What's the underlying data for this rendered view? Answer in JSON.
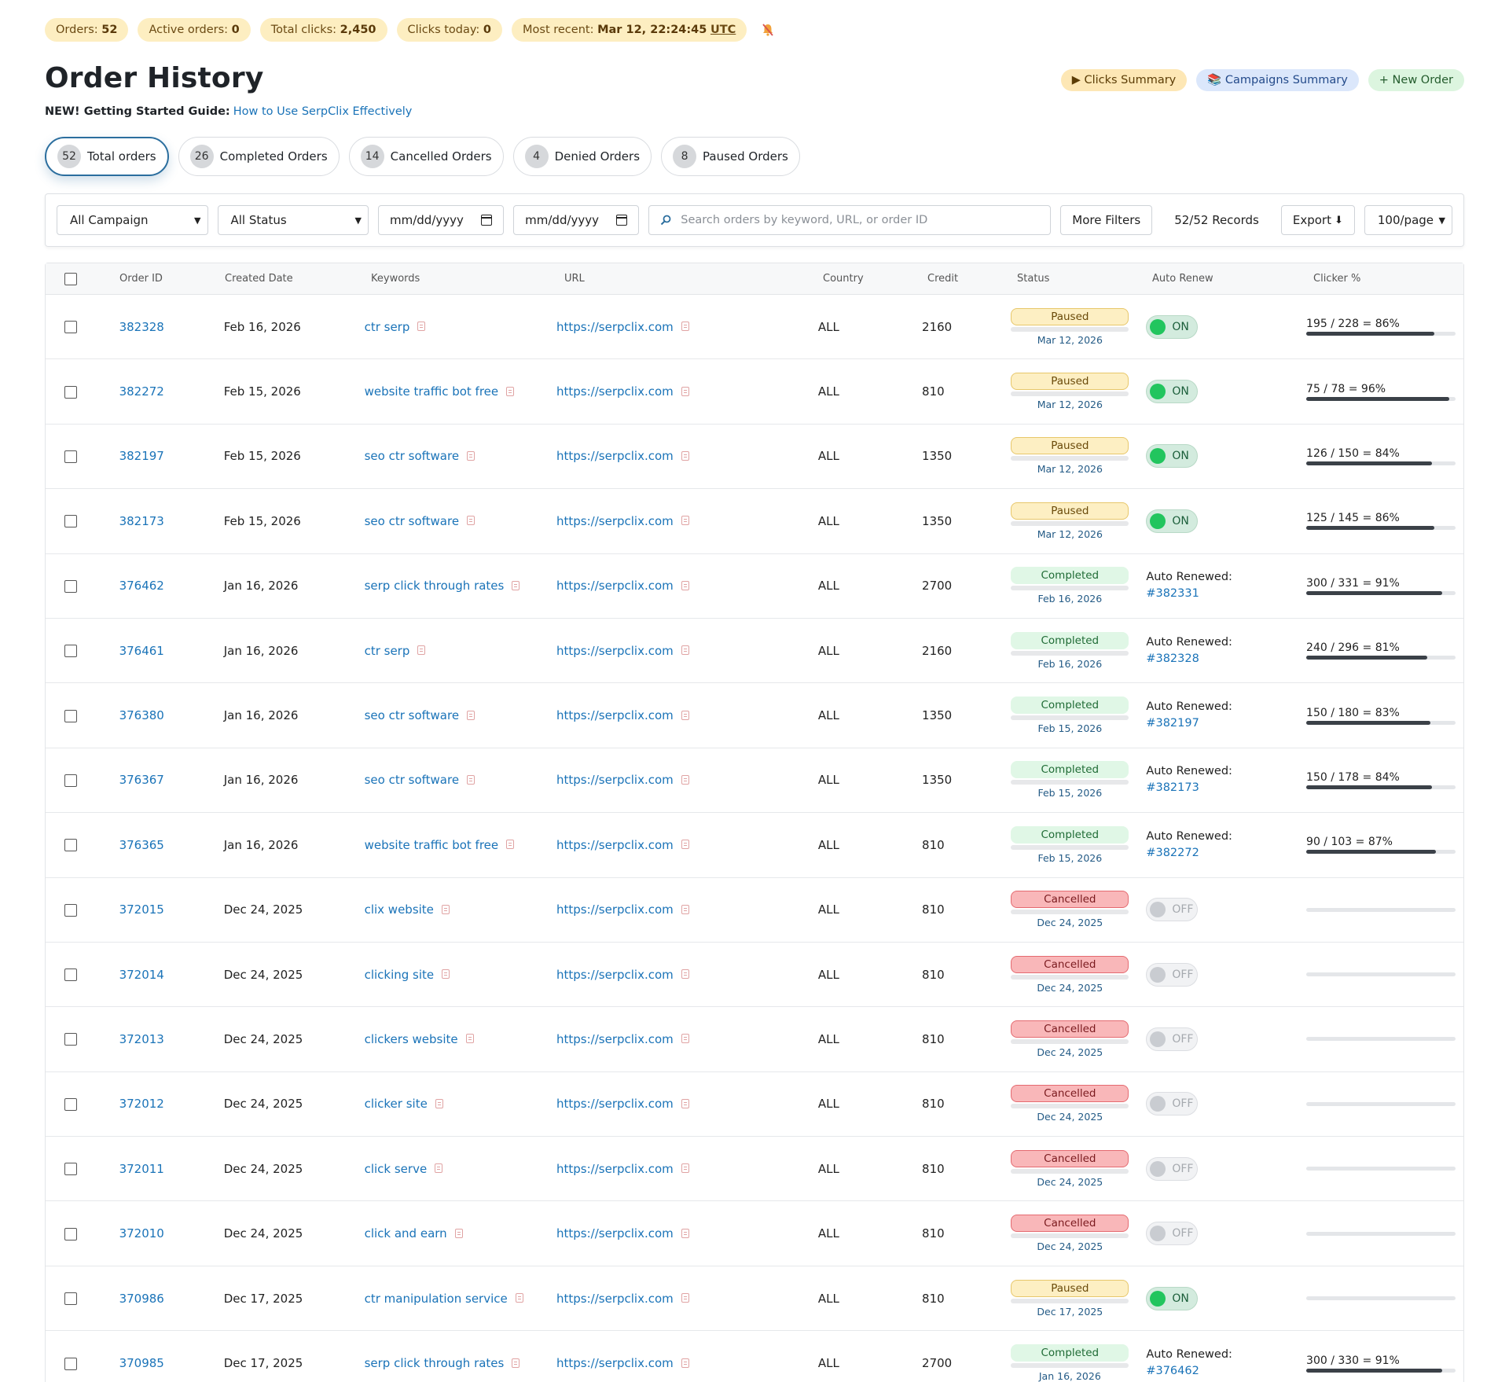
{
  "stats": {
    "orders_label": "Orders:",
    "orders_value": "52",
    "active_label": "Active orders:",
    "active_value": "0",
    "clicks_label": "Total clicks:",
    "clicks_value": "2,450",
    "today_label": "Clicks today:",
    "today_value": "0",
    "recent_label": "Most recent:",
    "recent_value": "Mar 12, 22:24:45",
    "recent_tz": "UTC",
    "notify_icon": "muted-bell-icon"
  },
  "header": {
    "title": "Order History",
    "clicks_summary": "▶ Clicks Summary",
    "campaigns_summary": "📚 Campaigns Summary",
    "new_order": "+ New Order"
  },
  "guide": {
    "label": "NEW! Getting Started Guide:",
    "link": "How to Use SerpClix Effectively"
  },
  "tabs": [
    {
      "count": "52",
      "label": "Total orders"
    },
    {
      "count": "26",
      "label": "Completed Orders"
    },
    {
      "count": "14",
      "label": "Cancelled Orders"
    },
    {
      "count": "4",
      "label": "Denied Orders"
    },
    {
      "count": "8",
      "label": "Paused Orders"
    }
  ],
  "filters": {
    "campaign": "All Campaign",
    "status": "All Status",
    "date_from": "mm/dd/yyyy",
    "date_to": "mm/dd/yyyy",
    "search_placeholder": "Search orders by keyword, URL, or order ID",
    "more_filters": "More Filters",
    "records": "52/52 Records",
    "export": "Export",
    "per_page": "100/page"
  },
  "table": {
    "columns": [
      "Order ID",
      "Created Date",
      "Keywords",
      "URL",
      "Country",
      "Credit",
      "Status",
      "Auto Renew",
      "Clicker %"
    ],
    "rows": [
      {
        "id": "382328",
        "date": "Feb 16, 2026",
        "kw": "ctr serp",
        "url": "https://serpclix.com",
        "country": "ALL",
        "credit": "2160",
        "status": "Paused",
        "status_date": "Mar 12, 2026",
        "renew": "ON",
        "renew_label": "",
        "renew_link": "",
        "clicker": "195 / 228 = 86%",
        "pct": 0.86
      },
      {
        "id": "382272",
        "date": "Feb 15, 2026",
        "kw": "website traffic bot free",
        "url": "https://serpclix.com",
        "country": "ALL",
        "credit": "810",
        "status": "Paused",
        "status_date": "Mar 12, 2026",
        "renew": "ON",
        "renew_label": "",
        "renew_link": "",
        "clicker": "75 / 78 = 96%",
        "pct": 0.96
      },
      {
        "id": "382197",
        "date": "Feb 15, 2026",
        "kw": "seo ctr software",
        "url": "https://serpclix.com",
        "country": "ALL",
        "credit": "1350",
        "status": "Paused",
        "status_date": "Mar 12, 2026",
        "renew": "ON",
        "renew_label": "",
        "renew_link": "",
        "clicker": "126 / 150 = 84%",
        "pct": 0.84
      },
      {
        "id": "382173",
        "date": "Feb 15, 2026",
        "kw": "seo ctr software",
        "url": "https://serpclix.com",
        "country": "ALL",
        "credit": "1350",
        "status": "Paused",
        "status_date": "Mar 12, 2026",
        "renew": "ON",
        "renew_label": "",
        "renew_link": "",
        "clicker": "125 / 145 = 86%",
        "pct": 0.86
      },
      {
        "id": "376462",
        "date": "Jan 16, 2026",
        "kw": "serp click through rates",
        "url": "https://serpclix.com",
        "country": "ALL",
        "credit": "2700",
        "status": "Completed",
        "status_date": "Feb 16, 2026",
        "renew": "",
        "renew_label": "Auto Renewed:",
        "renew_link": "#382331",
        "clicker": "300 / 331 = 91%",
        "pct": 0.91
      },
      {
        "id": "376461",
        "date": "Jan 16, 2026",
        "kw": "ctr serp",
        "url": "https://serpclix.com",
        "country": "ALL",
        "credit": "2160",
        "status": "Completed",
        "status_date": "Feb 16, 2026",
        "renew": "",
        "renew_label": "Auto Renewed:",
        "renew_link": "#382328",
        "clicker": "240 / 296 = 81%",
        "pct": 0.81
      },
      {
        "id": "376380",
        "date": "Jan 16, 2026",
        "kw": "seo ctr software",
        "url": "https://serpclix.com",
        "country": "ALL",
        "credit": "1350",
        "status": "Completed",
        "status_date": "Feb 15, 2026",
        "renew": "",
        "renew_label": "Auto Renewed:",
        "renew_link": "#382197",
        "clicker": "150 / 180 = 83%",
        "pct": 0.83
      },
      {
        "id": "376367",
        "date": "Jan 16, 2026",
        "kw": "seo ctr software",
        "url": "https://serpclix.com",
        "country": "ALL",
        "credit": "1350",
        "status": "Completed",
        "status_date": "Feb 15, 2026",
        "renew": "",
        "renew_label": "Auto Renewed:",
        "renew_link": "#382173",
        "clicker": "150 / 178 = 84%",
        "pct": 0.84
      },
      {
        "id": "376365",
        "date": "Jan 16, 2026",
        "kw": "website traffic bot free",
        "url": "https://serpclix.com",
        "country": "ALL",
        "credit": "810",
        "status": "Completed",
        "status_date": "Feb 15, 2026",
        "renew": "",
        "renew_label": "Auto Renewed:",
        "renew_link": "#382272",
        "clicker": "90 / 103 = 87%",
        "pct": 0.87
      },
      {
        "id": "372015",
        "date": "Dec 24, 2025",
        "kw": "clix website",
        "url": "https://serpclix.com",
        "country": "ALL",
        "credit": "810",
        "status": "Cancelled",
        "status_date": "Dec 24, 2025",
        "renew": "OFF",
        "renew_label": "",
        "renew_link": "",
        "clicker": "",
        "pct": 0
      },
      {
        "id": "372014",
        "date": "Dec 24, 2025",
        "kw": "clicking site",
        "url": "https://serpclix.com",
        "country": "ALL",
        "credit": "810",
        "status": "Cancelled",
        "status_date": "Dec 24, 2025",
        "renew": "OFF",
        "renew_label": "",
        "renew_link": "",
        "clicker": "",
        "pct": 0
      },
      {
        "id": "372013",
        "date": "Dec 24, 2025",
        "kw": "clickers website",
        "url": "https://serpclix.com",
        "country": "ALL",
        "credit": "810",
        "status": "Cancelled",
        "status_date": "Dec 24, 2025",
        "renew": "OFF",
        "renew_label": "",
        "renew_link": "",
        "clicker": "",
        "pct": 0
      },
      {
        "id": "372012",
        "date": "Dec 24, 2025",
        "kw": "clicker site",
        "url": "https://serpclix.com",
        "country": "ALL",
        "credit": "810",
        "status": "Cancelled",
        "status_date": "Dec 24, 2025",
        "renew": "OFF",
        "renew_label": "",
        "renew_link": "",
        "clicker": "",
        "pct": 0
      },
      {
        "id": "372011",
        "date": "Dec 24, 2025",
        "kw": "click serve",
        "url": "https://serpclix.com",
        "country": "ALL",
        "credit": "810",
        "status": "Cancelled",
        "status_date": "Dec 24, 2025",
        "renew": "OFF",
        "renew_label": "",
        "renew_link": "",
        "clicker": "",
        "pct": 0
      },
      {
        "id": "372010",
        "date": "Dec 24, 2025",
        "kw": "click and earn",
        "url": "https://serpclix.com",
        "country": "ALL",
        "credit": "810",
        "status": "Cancelled",
        "status_date": "Dec 24, 2025",
        "renew": "OFF",
        "renew_label": "",
        "renew_link": "",
        "clicker": "",
        "pct": 0
      },
      {
        "id": "370986",
        "date": "Dec 17, 2025",
        "kw": "ctr manipulation service",
        "url": "https://serpclix.com",
        "country": "ALL",
        "credit": "810",
        "status": "Paused",
        "status_date": "Dec 17, 2025",
        "renew": "ON",
        "renew_label": "",
        "renew_link": "",
        "clicker": "",
        "pct": 0
      },
      {
        "id": "370985",
        "date": "Dec 17, 2025",
        "kw": "serp click through rates",
        "url": "https://serpclix.com",
        "country": "ALL",
        "credit": "2700",
        "status": "Completed",
        "status_date": "Jan 16, 2026",
        "renew": "",
        "renew_label": "Auto Renewed:",
        "renew_link": "#376462",
        "clicker": "300 / 330 = 91%",
        "pct": 0.91
      }
    ]
  }
}
